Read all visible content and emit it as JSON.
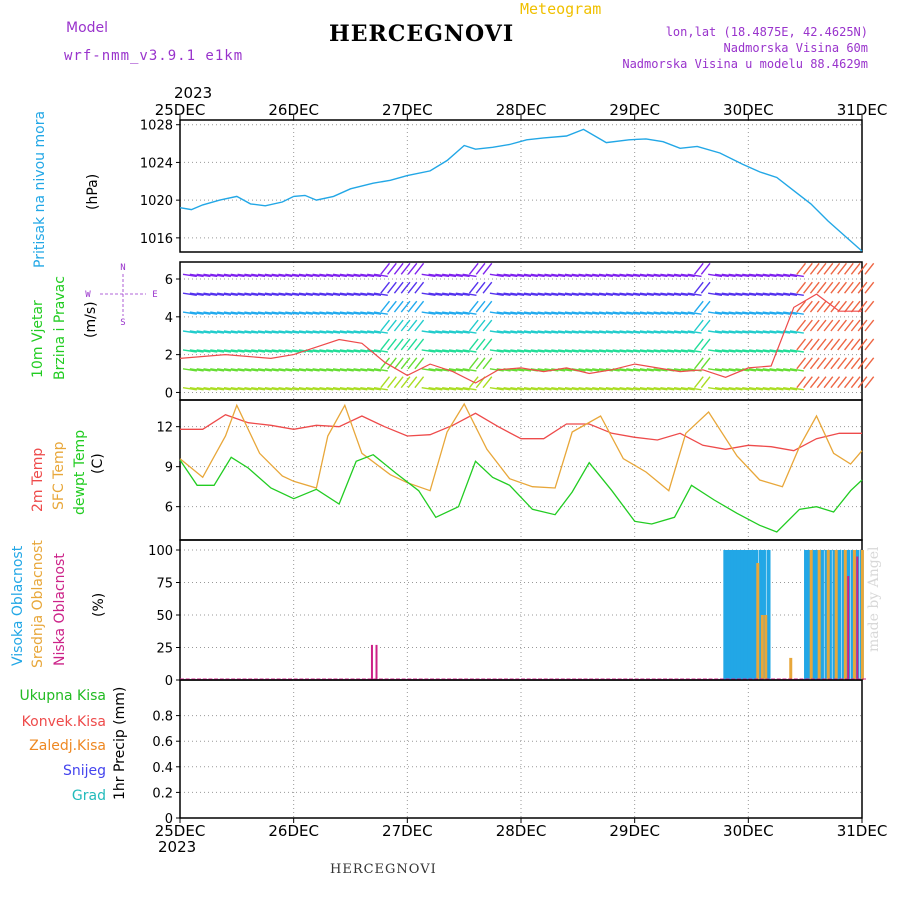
{
  "header": {
    "model_label": "Model",
    "model_value": "wrf-nmm_v3.9.1 e1km",
    "title": "HERCEGNOVI",
    "meteogram": "Meteogram",
    "lonlat": "lon,lat (18.4875E, 42.4625N)",
    "elev": "Nadmorska Visina 60m",
    "elev_model": "Nadmorska Visina u modelu 88.4629m",
    "year_top": "2023",
    "year_bottom": "2023",
    "footer_title": "HERCEGNOVI",
    "watermark": "made by Angel"
  },
  "colors": {
    "pressure": "#22a7e6",
    "temp2m": "#ee4b4b",
    "sfc": "#e8a73a",
    "dew": "#22cc22",
    "high": "#22a7e6",
    "mid": "#e8a73a",
    "low": "#cc2288",
    "precip_total": "#22bb22",
    "precip_conv": "#ee4b4b",
    "precip_frz": "#ee8822",
    "precip_snow": "#4444ee",
    "precip_hail": "#22bbbb",
    "wind_axis": "#9933cc",
    "meta": "#9933cc"
  },
  "chart_data": [
    {
      "type": "line",
      "panel": "pressure",
      "ylabel": "Pritisak na nivou mora",
      "unit": "(hPa)",
      "ylim": [
        1014.5,
        1028.5
      ],
      "yticks": [
        1016,
        1020,
        1024,
        1028
      ],
      "xticks": [
        "25DEC",
        "26DEC",
        "27DEC",
        "28DEC",
        "29DEC",
        "30DEC",
        "31DEC"
      ],
      "grid": true,
      "series": [
        {
          "x": [
            0,
            0.1,
            0.2,
            0.35,
            0.5,
            0.62,
            0.75,
            0.9,
            1.0,
            1.1,
            1.2,
            1.35,
            1.5,
            1.7,
            1.85,
            2.0,
            2.2,
            2.35,
            2.5,
            2.6,
            2.75,
            2.9,
            3.05,
            3.2,
            3.4,
            3.55,
            3.75,
            3.95,
            4.1,
            4.25,
            4.4,
            4.55,
            4.75,
            4.95,
            5.1,
            5.25,
            5.4,
            5.55,
            5.7,
            5.85,
            6.0
          ],
          "y": [
            1019.2,
            1019.0,
            1019.5,
            1020.0,
            1020.4,
            1019.6,
            1019.4,
            1019.8,
            1020.4,
            1020.5,
            1020.0,
            1020.4,
            1021.2,
            1021.8,
            1022.1,
            1022.6,
            1023.1,
            1024.2,
            1025.8,
            1025.4,
            1025.6,
            1025.9,
            1026.4,
            1026.6,
            1026.8,
            1027.5,
            1026.1,
            1026.4,
            1026.5,
            1026.2,
            1025.5,
            1025.7,
            1025.0,
            1023.8,
            1023.0,
            1022.4,
            1021.0,
            1019.6,
            1017.8,
            1016.2,
            1014.6
          ]
        }
      ]
    },
    {
      "type": "line",
      "panel": "wind",
      "ylabel": "10m Vjetar",
      "ylabel2": "Brzina i Pravac",
      "unit": "(m/s)",
      "ylim": [
        -0.4,
        6.9
      ],
      "yticks": [
        0,
        2,
        4,
        6
      ],
      "compass": {
        "n": "N",
        "s": "S",
        "e": "E",
        "w": "W"
      },
      "series": [
        {
          "name": "speed",
          "x": [
            0,
            0.2,
            0.4,
            0.6,
            0.8,
            1.0,
            1.2,
            1.4,
            1.6,
            1.8,
            2.0,
            2.2,
            2.4,
            2.6,
            2.8,
            3.0,
            3.2,
            3.4,
            3.6,
            3.8,
            4.0,
            4.2,
            4.4,
            4.6,
            4.8,
            5.0,
            5.2,
            5.4,
            5.6,
            5.8,
            6.0
          ],
          "y": [
            1.8,
            1.9,
            2.0,
            1.9,
            1.8,
            2.0,
            2.4,
            2.8,
            2.6,
            1.6,
            0.9,
            1.5,
            1.1,
            0.5,
            1.2,
            1.3,
            1.1,
            1.3,
            1.0,
            1.2,
            1.5,
            1.3,
            1.1,
            1.2,
            0.8,
            1.3,
            1.4,
            4.5,
            5.2,
            4.3,
            4.3
          ]
        }
      ]
    },
    {
      "type": "line",
      "panel": "temperature",
      "ylabels": [
        "2m Temp",
        "SFC Temp",
        "dewpt Temp"
      ],
      "unit": "(C)",
      "ylim": [
        3.5,
        14.0
      ],
      "yticks": [
        6,
        9,
        12
      ],
      "series": [
        {
          "name": "2m Temp",
          "x": [
            0,
            0.2,
            0.4,
            0.6,
            0.8,
            1.0,
            1.2,
            1.4,
            1.6,
            1.8,
            2.0,
            2.2,
            2.4,
            2.6,
            2.8,
            3.0,
            3.2,
            3.4,
            3.6,
            3.8,
            4.0,
            4.2,
            4.4,
            4.6,
            4.8,
            5.0,
            5.2,
            5.4,
            5.6,
            5.8,
            6.0
          ],
          "y": [
            11.8,
            11.8,
            12.9,
            12.3,
            12.1,
            11.8,
            12.1,
            12.0,
            12.8,
            12.0,
            11.3,
            11.4,
            12.1,
            13.0,
            12.0,
            11.1,
            11.1,
            12.2,
            12.2,
            11.5,
            11.2,
            11.0,
            11.5,
            10.6,
            10.3,
            10.6,
            10.5,
            10.2,
            11.1,
            11.5,
            11.5
          ]
        },
        {
          "name": "SFC Temp",
          "x": [
            0,
            0.2,
            0.4,
            0.5,
            0.7,
            0.9,
            1.0,
            1.2,
            1.3,
            1.45,
            1.6,
            1.85,
            2.0,
            2.2,
            2.35,
            2.5,
            2.7,
            2.9,
            3.1,
            3.3,
            3.45,
            3.7,
            3.9,
            4.1,
            4.3,
            4.45,
            4.65,
            4.9,
            5.1,
            5.3,
            5.45,
            5.6,
            5.75,
            5.9,
            6.0
          ],
          "y": [
            9.6,
            8.2,
            11.3,
            13.6,
            10.0,
            8.3,
            7.9,
            7.4,
            11.3,
            13.6,
            10.0,
            8.4,
            7.8,
            7.2,
            11.6,
            13.7,
            10.3,
            8.1,
            7.5,
            7.4,
            11.6,
            12.8,
            9.6,
            8.6,
            7.2,
            11.5,
            13.1,
            9.8,
            8.0,
            7.5,
            10.5,
            12.8,
            10.0,
            9.2,
            10.2
          ]
        },
        {
          "name": "dewpt Temp",
          "x": [
            0,
            0.15,
            0.3,
            0.45,
            0.6,
            0.8,
            1.0,
            1.2,
            1.4,
            1.55,
            1.7,
            1.9,
            2.1,
            2.25,
            2.45,
            2.6,
            2.75,
            2.9,
            3.1,
            3.3,
            3.45,
            3.6,
            3.8,
            4.0,
            4.15,
            4.35,
            4.5,
            4.7,
            4.9,
            5.1,
            5.25,
            5.45,
            5.6,
            5.75,
            5.9,
            6.0
          ],
          "y": [
            9.5,
            7.6,
            7.6,
            9.7,
            8.9,
            7.4,
            6.6,
            7.3,
            6.2,
            9.4,
            9.9,
            8.5,
            7.2,
            5.2,
            6.0,
            9.4,
            8.2,
            7.6,
            5.8,
            5.4,
            7.1,
            9.3,
            7.2,
            4.9,
            4.7,
            5.2,
            7.6,
            6.5,
            5.5,
            4.6,
            4.1,
            5.8,
            6.0,
            5.6,
            7.2,
            8.0
          ]
        }
      ]
    },
    {
      "type": "bar",
      "panel": "clouds",
      "ylabels": [
        "Visoka Oblacnost",
        "Srednja Oblacnost",
        "Niska Oblacnost"
      ],
      "unit": "(%)",
      "ylim": [
        0,
        100
      ],
      "yticks": [
        0,
        25,
        50,
        75,
        100
      ],
      "series": [
        {
          "name": "Visoka Oblacnost",
          "x": [
            4.78,
            4.81,
            4.84,
            4.87,
            4.9,
            4.93,
            4.96,
            4.99,
            5.02,
            5.05,
            5.09,
            5.12,
            5.16,
            5.49,
            5.52,
            5.56,
            5.59,
            5.63,
            5.67,
            5.7,
            5.74,
            5.78,
            5.82,
            5.86,
            5.9,
            5.94,
            5.98
          ],
          "values": [
            100,
            100,
            100,
            100,
            100,
            100,
            100,
            100,
            100,
            100,
            100,
            100,
            100,
            100,
            100,
            100,
            100,
            100,
            100,
            100,
            100,
            100,
            100,
            100,
            100,
            100,
            100
          ]
        },
        {
          "name": "Srednja Oblacnost",
          "x": [
            5.07,
            5.11,
            5.14,
            5.36,
            5.54,
            5.61,
            5.69,
            5.76,
            5.84,
            5.92,
            5.99
          ],
          "values": [
            90,
            50,
            50,
            17,
            100,
            100,
            100,
            100,
            100,
            100,
            100
          ]
        },
        {
          "name": "Niska Oblacnost",
          "x": [
            1.68,
            1.72,
            5.87,
            5.95
          ],
          "values": [
            27,
            27,
            80,
            95
          ]
        }
      ]
    },
    {
      "type": "bar",
      "panel": "precipitation",
      "ylabels": [
        "Ukupna Kisa",
        "Konvek.Kisa",
        "Zaledj.Kisa",
        "Snijeg",
        "Grad"
      ],
      "unit": "1hr Precip (mm)",
      "ylim": [
        0,
        1.0
      ],
      "yticks": [
        0,
        0.2,
        0.4,
        0.6,
        0.8
      ],
      "series": []
    }
  ]
}
